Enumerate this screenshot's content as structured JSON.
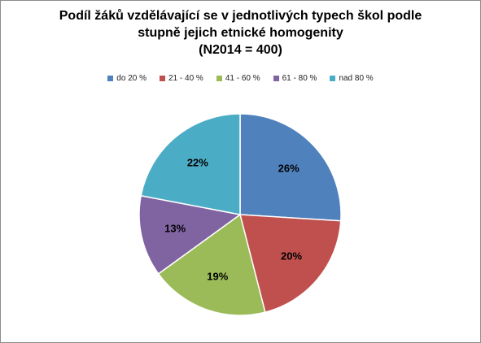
{
  "chart_data": {
    "type": "pie",
    "title_lines": [
      "Podíl žáků vzdělávající se v jednotlivých typech škol podle",
      "stupně jejich etnické homogenity",
      "(N2014 = 400)"
    ],
    "legend_position": "top",
    "categories": [
      "do 20 %",
      "21 - 40 %",
      "41 - 60 %",
      "61 - 80 %",
      "nad 80 %"
    ],
    "values": [
      26,
      20,
      19,
      13,
      22
    ],
    "value_labels": [
      "26%",
      "20%",
      "19%",
      "13%",
      "22%"
    ],
    "colors": [
      "#4f81bd",
      "#c0504d",
      "#9bbb59",
      "#8064a2",
      "#4bacc6"
    ],
    "start_angle_deg": 0,
    "direction": "clockwise"
  }
}
